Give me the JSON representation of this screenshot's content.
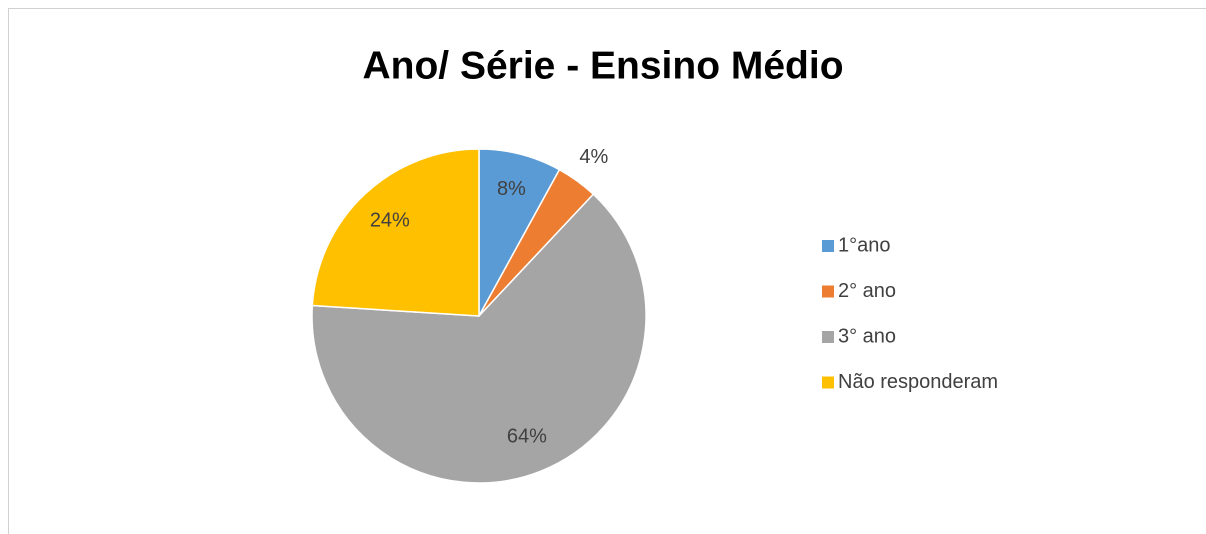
{
  "chart_data": {
    "type": "pie",
    "title": "Ano/ Série - Ensino Médio",
    "categories": [
      "1°ano",
      "2° ano",
      "3° ano",
      "Não responderam"
    ],
    "values": [
      8,
      4,
      64,
      24
    ],
    "value_labels": [
      "8%",
      "4%",
      "64%",
      "24%"
    ],
    "colors": [
      "#5b9bd5",
      "#ed7d31",
      "#a5a5a5",
      "#ffc000"
    ],
    "legend": "right"
  }
}
